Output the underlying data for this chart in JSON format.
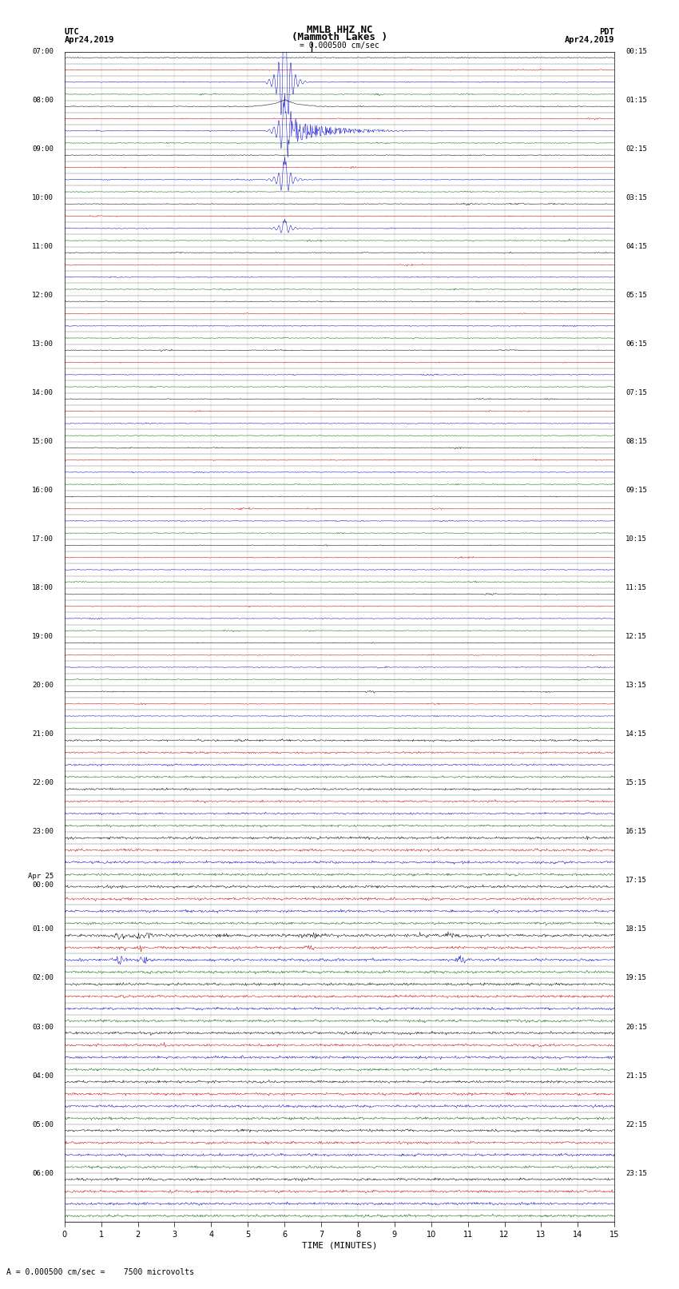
{
  "title_line1": "MMLB HHZ NC",
  "title_line2": "(Mammoth Lakes )",
  "scale_text": "= 0.000500 cm/sec",
  "bottom_scale_text": "= 0.000500 cm/sec =    7500 microvolts",
  "utc_label": "UTC",
  "utc_date": "Apr24,2019",
  "pdt_label": "PDT",
  "pdt_date": "Apr24,2019",
  "xlabel": "TIME (MINUTES)",
  "xmin": 0,
  "xmax": 15,
  "xticks": [
    0,
    1,
    2,
    3,
    4,
    5,
    6,
    7,
    8,
    9,
    10,
    11,
    12,
    13,
    14,
    15
  ],
  "background_color": "#ffffff",
  "trace_colors": [
    "#000000",
    "#cc0000",
    "#0000cc",
    "#006600"
  ],
  "fig_width": 8.5,
  "fig_height": 16.13,
  "dpi": 100
}
